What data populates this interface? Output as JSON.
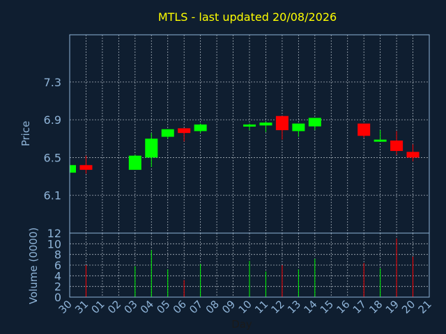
{
  "colors": {
    "background": "#0f1e30",
    "title": "#ffff00",
    "axis_text": "#8fb4d8",
    "frame": "#8fb4d8",
    "grid": "#d0d8e0",
    "up": "#00ff00",
    "down": "#ff0000"
  },
  "chart_data": {
    "type": "candlestick",
    "title": "MTLS - last updated 20/08/2026",
    "xlabel": "Day",
    "grid": true,
    "price_panel": {
      "ylabel": "Price",
      "ylim": [
        5.7,
        7.8
      ],
      "yticks": [
        6.1,
        6.5,
        6.9,
        7.3
      ],
      "ytick_labels": [
        "6.1",
        "6.5",
        "6.9",
        "7.3"
      ]
    },
    "volume_panel": {
      "ylabel": "Volume (0000)",
      "ylim": [
        0,
        12
      ],
      "yticks": [
        0,
        2,
        4,
        6,
        8,
        10,
        12
      ],
      "ytick_labels": [
        "0",
        "2",
        "4",
        "6",
        "8",
        "10",
        "12"
      ]
    },
    "x_tick_labels": [
      "30",
      "31",
      "01",
      "02",
      "03",
      "04",
      "05",
      "06",
      "07",
      "08",
      "09",
      "10",
      "11",
      "12",
      "13",
      "14",
      "15",
      "16",
      "17",
      "18",
      "19",
      "20",
      "21"
    ],
    "candles": [
      {
        "day": "30",
        "open": 6.34,
        "high": 6.42,
        "low": 6.34,
        "close": 6.42,
        "volume": 0
      },
      {
        "day": "31",
        "open": 6.42,
        "high": 6.52,
        "low": 6.33,
        "close": 6.37,
        "volume": 6.0
      },
      {
        "day": "03",
        "open": 6.37,
        "high": 6.53,
        "low": 6.37,
        "close": 6.52,
        "volume": 5.8
      },
      {
        "day": "04",
        "open": 6.5,
        "high": 6.76,
        "low": 6.4,
        "close": 6.7,
        "volume": 8.8
      },
      {
        "day": "05",
        "open": 6.72,
        "high": 6.8,
        "low": 6.7,
        "close": 6.8,
        "volume": 5.2
      },
      {
        "day": "06",
        "open": 6.81,
        "high": 6.81,
        "low": 6.67,
        "close": 6.76,
        "volume": 3.2
      },
      {
        "day": "07",
        "open": 6.78,
        "high": 6.86,
        "low": 6.76,
        "close": 6.85,
        "volume": 6.2
      },
      {
        "day": "10",
        "open": 6.84,
        "high": 6.86,
        "low": 6.79,
        "close": 6.85,
        "volume": 6.8
      },
      {
        "day": "11",
        "open": 6.84,
        "high": 6.88,
        "low": 6.77,
        "close": 6.87,
        "volume": 4.8
      },
      {
        "day": "12",
        "open": 6.94,
        "high": 6.94,
        "low": 6.69,
        "close": 6.79,
        "volume": 6.0
      },
      {
        "day": "13",
        "open": 6.78,
        "high": 6.86,
        "low": 6.72,
        "close": 6.86,
        "volume": 5.2
      },
      {
        "day": "14",
        "open": 6.83,
        "high": 6.92,
        "low": 6.79,
        "close": 6.92,
        "volume": 7.2
      },
      {
        "day": "17",
        "open": 6.86,
        "high": 6.86,
        "low": 6.71,
        "close": 6.73,
        "volume": 6.4
      },
      {
        "day": "18",
        "open": 6.67,
        "high": 6.79,
        "low": 6.67,
        "close": 6.69,
        "volume": 5.4
      },
      {
        "day": "19",
        "open": 6.68,
        "high": 6.78,
        "low": 6.53,
        "close": 6.57,
        "volume": 11.0
      },
      {
        "day": "20",
        "open": 6.56,
        "high": 6.64,
        "low": 6.46,
        "close": 6.5,
        "volume": 7.6
      }
    ]
  }
}
